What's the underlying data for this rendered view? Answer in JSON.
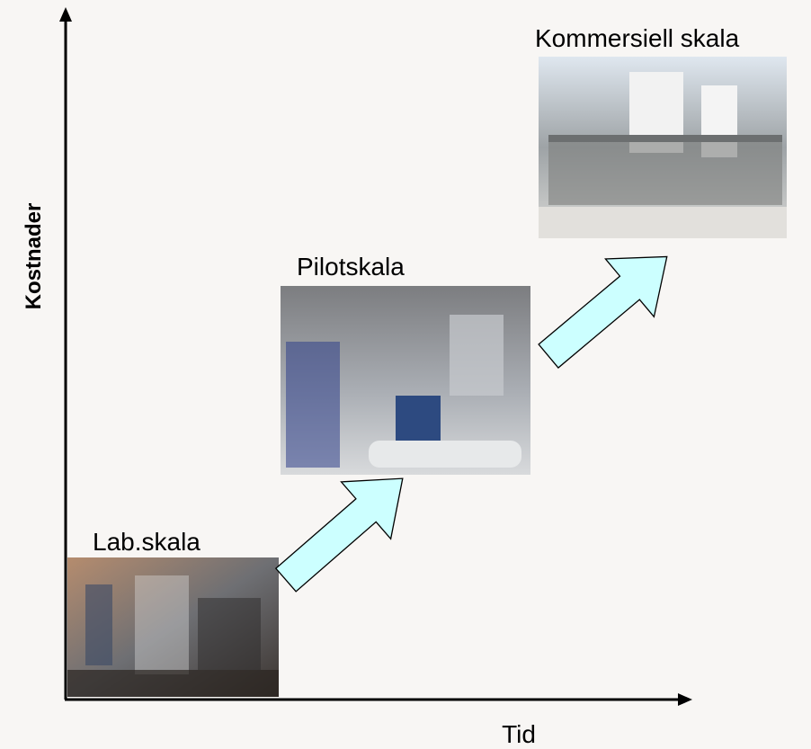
{
  "axes": {
    "y_label": "Kostnader",
    "x_label": "Tid"
  },
  "stages": [
    {
      "label": "Lab.skala"
    },
    {
      "label": "Pilotskala"
    },
    {
      "label": "Kommersiell skala"
    }
  ]
}
